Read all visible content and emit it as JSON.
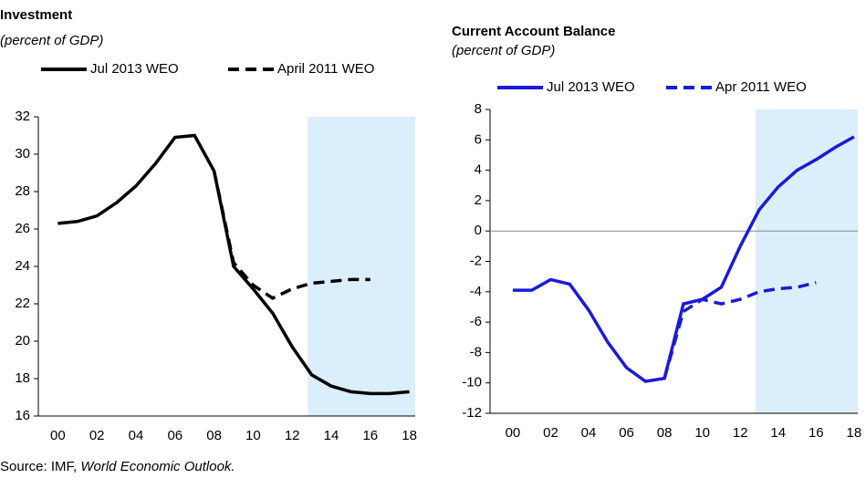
{
  "chart_data": [
    {
      "type": "line",
      "title": "Investment",
      "subtitle": "(percent of GDP)",
      "x": [
        2000,
        2001,
        2002,
        2003,
        2004,
        2005,
        2006,
        2007,
        2008,
        2009,
        2010,
        2011,
        2012,
        2013,
        2014,
        2015,
        2016,
        2017,
        2018
      ],
      "series": [
        {
          "name": "Jul 2013 WEO",
          "color": "#000000",
          "dash": false,
          "values": [
            26.3,
            26.4,
            26.7,
            27.4,
            28.3,
            29.5,
            30.9,
            31.0,
            29.1,
            24.0,
            22.8,
            21.5,
            19.7,
            18.2,
            17.6,
            17.3,
            17.2,
            17.2,
            17.3
          ]
        },
        {
          "name": "April 2011 WEO",
          "color": "#000000",
          "dash": true,
          "values": [
            null,
            null,
            null,
            null,
            null,
            null,
            null,
            null,
            29.1,
            24.2,
            23.0,
            22.3,
            22.8,
            23.1,
            23.2,
            23.3,
            23.3,
            null,
            null
          ]
        }
      ],
      "xlim": [
        1999,
        2018.3
      ],
      "xticks": [
        {
          "value": 2000,
          "label": "00"
        },
        {
          "value": 2002,
          "label": "02"
        },
        {
          "value": 2004,
          "label": "04"
        },
        {
          "value": 2006,
          "label": "06"
        },
        {
          "value": 2008,
          "label": "08"
        },
        {
          "value": 2010,
          "label": "10"
        },
        {
          "value": 2012,
          "label": "12"
        },
        {
          "value": 2014,
          "label": "14"
        },
        {
          "value": 2016,
          "label": "16"
        },
        {
          "value": 2018,
          "label": "18"
        }
      ],
      "ylim": [
        16,
        32
      ],
      "yticks": [
        16,
        18,
        20,
        22,
        24,
        26,
        28,
        30,
        32
      ],
      "shaded_xrange": [
        2012.8,
        2018.3
      ],
      "shade_color": "#dbeefb",
      "zero_line": false
    },
    {
      "type": "line",
      "title": "Current Account Balance",
      "subtitle": "(percent of GDP)",
      "x": [
        2000,
        2001,
        2002,
        2003,
        2004,
        2005,
        2006,
        2007,
        2008,
        2009,
        2010,
        2011,
        2012,
        2013,
        2014,
        2015,
        2016,
        2017,
        2018
      ],
      "series": [
        {
          "name": "Jul 2013 WEO",
          "color": "#1a1adb",
          "dash": false,
          "values": [
            -3.9,
            -3.9,
            -3.2,
            -3.5,
            -5.2,
            -7.3,
            -9.0,
            -9.9,
            -9.7,
            -4.8,
            -4.5,
            -3.7,
            -1.0,
            1.4,
            2.9,
            4.0,
            4.7,
            5.5,
            6.2
          ]
        },
        {
          "name": "Apr 2011 WEO",
          "color": "#1a1adb",
          "dash": true,
          "values": [
            null,
            null,
            null,
            null,
            null,
            null,
            null,
            null,
            -9.7,
            -5.3,
            -4.5,
            -4.8,
            -4.5,
            -4.0,
            -3.8,
            -3.7,
            -3.4,
            null,
            null
          ]
        }
      ],
      "xlim": [
        1998.8,
        2018.2
      ],
      "xticks": [
        {
          "value": 2000,
          "label": "00"
        },
        {
          "value": 2002,
          "label": "02"
        },
        {
          "value": 2004,
          "label": "04"
        },
        {
          "value": 2006,
          "label": "06"
        },
        {
          "value": 2008,
          "label": "08"
        },
        {
          "value": 2010,
          "label": "10"
        },
        {
          "value": 2012,
          "label": "12"
        },
        {
          "value": 2014,
          "label": "14"
        },
        {
          "value": 2016,
          "label": "16"
        },
        {
          "value": 2018,
          "label": "18"
        }
      ],
      "ylim": [
        -12,
        8
      ],
      "yticks": [
        -12,
        -10,
        -8,
        -6,
        -4,
        -2,
        0,
        2,
        4,
        6,
        8
      ],
      "shaded_xrange": [
        2012.8,
        2018.2
      ],
      "shade_color": "#dbeefb",
      "zero_line": true
    }
  ],
  "source": {
    "prefix": "Source: IMF, ",
    "italic": "World Economic Outlook."
  }
}
